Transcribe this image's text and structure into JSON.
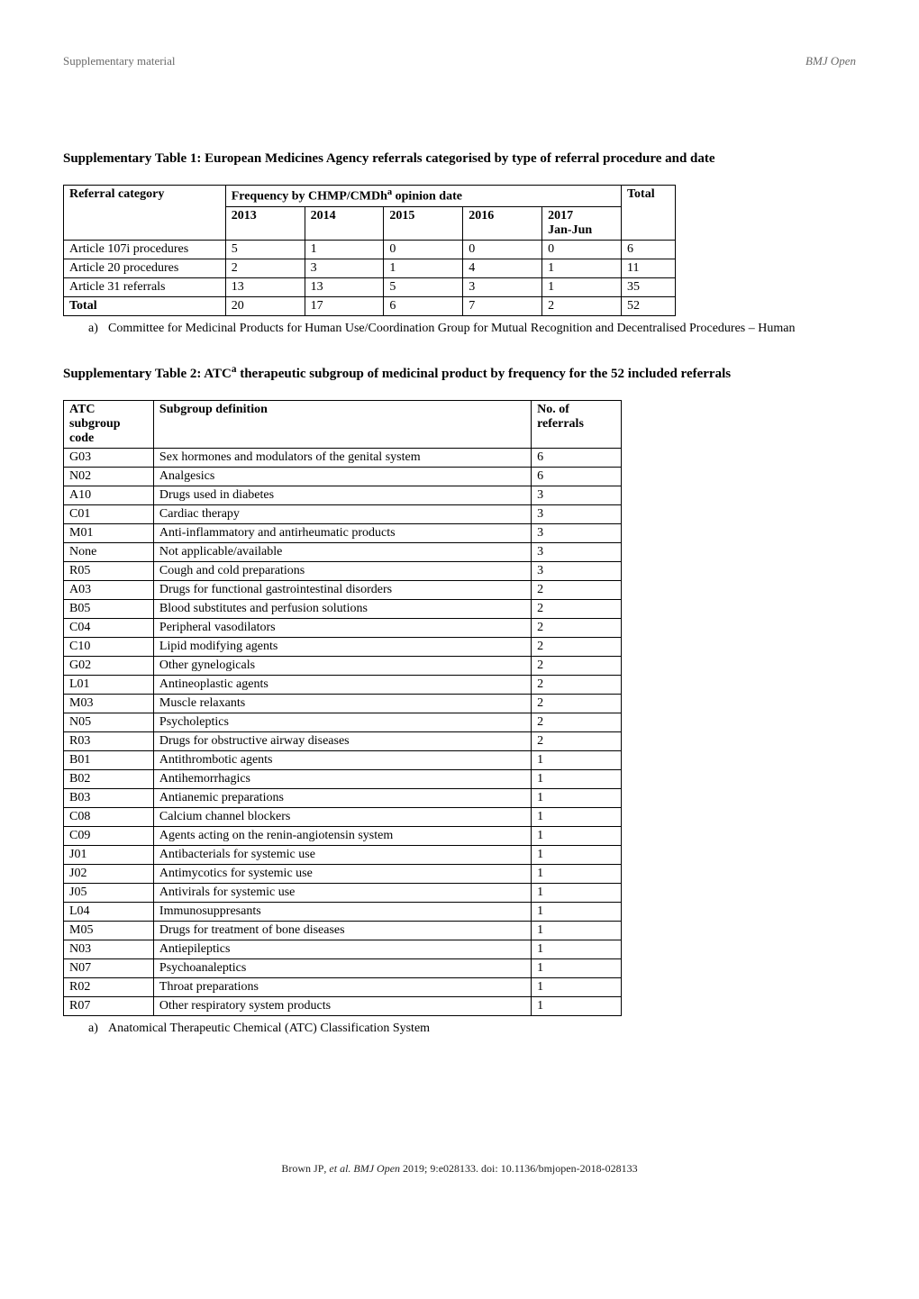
{
  "header": {
    "left": "Supplementary material",
    "right": "BMJ Open"
  },
  "table1": {
    "title": "Supplementary Table 1: European Medicines Agency referrals categorised by type of referral procedure and date",
    "col_header_left": "Referral category",
    "col_header_span": "Frequency by CHMP/CMDh",
    "col_header_span_sup": "a",
    "col_header_span_tail": " opinion date",
    "col_header_right": "Total",
    "years": [
      "2013",
      "2014",
      "2015",
      "2016",
      "2017\nJan-Jun"
    ],
    "rows": [
      {
        "label": "Article 107i procedures",
        "vals": [
          "5",
          "1",
          "0",
          "0",
          "0"
        ],
        "total": "6"
      },
      {
        "label": "Article 20 procedures",
        "vals": [
          "2",
          "3",
          "1",
          "4",
          "1"
        ],
        "total": "11"
      },
      {
        "label": "Article 31 referrals",
        "vals": [
          "13",
          "13",
          "5",
          "3",
          "1"
        ],
        "total": "35"
      }
    ],
    "total_row": {
      "label": "Total",
      "vals": [
        "20",
        "17",
        "6",
        "7",
        "2"
      ],
      "total": "52"
    },
    "footnote_label": "a)",
    "footnote_text": "Committee for Medicinal Products for Human Use/Coordination Group for Mutual Recognition and Decentralised Procedures – Human"
  },
  "table2": {
    "title_pre": "Supplementary Table 2: ATC",
    "title_sup": "a",
    "title_post": " therapeutic subgroup of medicinal product by frequency for the 52 included referrals",
    "headers": [
      "ATC\nsubgroup\ncode",
      "Subgroup definition",
      "No. of\nreferrals"
    ],
    "rows": [
      [
        "G03",
        "Sex hormones and modulators of the genital system",
        "6"
      ],
      [
        "N02",
        "Analgesics",
        "6"
      ],
      [
        "A10",
        "Drugs used in diabetes",
        "3"
      ],
      [
        "C01",
        "Cardiac therapy",
        "3"
      ],
      [
        "M01",
        "Anti-inflammatory and antirheumatic products",
        "3"
      ],
      [
        "None",
        "Not applicable/available",
        "3"
      ],
      [
        "R05",
        "Cough and cold preparations",
        "3"
      ],
      [
        "A03",
        "Drugs for functional gastrointestinal disorders",
        "2"
      ],
      [
        "B05",
        "Blood substitutes and perfusion solutions",
        "2"
      ],
      [
        "C04",
        "Peripheral vasodilators",
        "2"
      ],
      [
        "C10",
        "Lipid modifying agents",
        "2"
      ],
      [
        "G02",
        "Other gynelogicals",
        "2"
      ],
      [
        "L01",
        "Antineoplastic agents",
        "2"
      ],
      [
        "M03",
        "Muscle relaxants",
        "2"
      ],
      [
        "N05",
        "Psycholeptics",
        "2"
      ],
      [
        "R03",
        "Drugs for obstructive airway diseases",
        "2"
      ],
      [
        "B01",
        "Antithrombotic agents",
        "1"
      ],
      [
        "B02",
        "Antihemorrhagics",
        "1"
      ],
      [
        "B03",
        "Antianemic preparations",
        "1"
      ],
      [
        "C08",
        "Calcium channel blockers",
        "1"
      ],
      [
        "C09",
        "Agents acting on the renin-angiotensin system",
        "1"
      ],
      [
        "J01",
        "Antibacterials for systemic use",
        "1"
      ],
      [
        "J02",
        "Antimycotics for systemic use",
        "1"
      ],
      [
        "J05",
        "Antivirals for systemic use",
        "1"
      ],
      [
        "L04",
        "Immunosuppresants",
        "1"
      ],
      [
        "M05",
        "Drugs for treatment of bone diseases",
        "1"
      ],
      [
        "N03",
        "Antiepileptics",
        "1"
      ],
      [
        "N07",
        "Psychoanaleptics",
        "1"
      ],
      [
        "R02",
        "Throat preparations",
        "1"
      ],
      [
        "R07",
        "Other respiratory system products",
        "1"
      ]
    ],
    "footnote_label": "a)",
    "footnote_text": "Anatomical Therapeutic Chemical (ATC) Classification System"
  },
  "footer": {
    "citation_pre": "Brown JP",
    "citation_mid": ", et al. BMJ Open",
    "citation_post": " 2019; 9:e028133. doi: 10.1136/bmjopen-2018-028133"
  }
}
